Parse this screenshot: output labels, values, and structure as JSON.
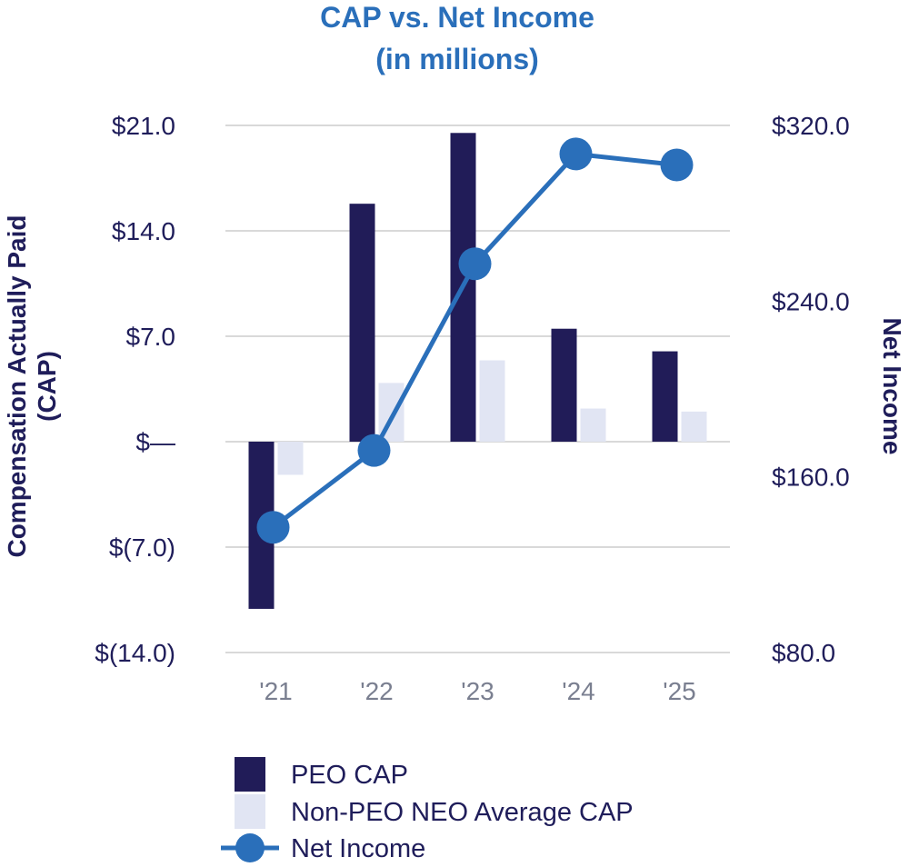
{
  "colors": {
    "peo": "#211c58",
    "non_peo": "#e1e5f3",
    "net_income": "#2a6fba",
    "grid": "#d9d9d9",
    "title": "#2a6fba",
    "text": "#1f1d5a"
  },
  "chart_data": {
    "type": "bar",
    "title_line1": "CAP vs. Net Income",
    "title_line2": "(in millions)",
    "categories": [
      "'21",
      "'22",
      "'23",
      "'24",
      "'25"
    ],
    "ylabel_left_line1": "Compensation Actually Paid",
    "ylabel_left_line2": "(CAP)",
    "ylabel_right": "Net Income",
    "left_axis": {
      "ylim": [
        -14.0,
        21.0
      ],
      "ticks": [
        21.0,
        14.0,
        7.0,
        0.0,
        -7.0,
        -14.0
      ],
      "tick_labels": [
        "$21.0",
        "$14.0",
        "$7.0",
        "$—",
        "$(7.0)",
        "$(14.0)"
      ]
    },
    "right_axis": {
      "ylim": [
        80.0,
        320.0
      ],
      "ticks": [
        320.0,
        240.0,
        160.0,
        80.0
      ],
      "tick_labels": [
        "$320.0",
        "$240.0",
        "$160.0",
        "$80.0"
      ]
    },
    "grid": true,
    "series": [
      {
        "name": "PEO CAP",
        "kind": "bar",
        "axis": "left",
        "values": [
          -11.1,
          15.8,
          20.5,
          7.5,
          6.0
        ]
      },
      {
        "name": "Non-PEO NEO Average CAP",
        "kind": "bar",
        "axis": "left",
        "values": [
          -2.2,
          3.9,
          5.4,
          2.2,
          2.0
        ]
      },
      {
        "name": "Net Income",
        "kind": "line",
        "axis": "right",
        "values": [
          137.0,
          172.0,
          257.0,
          307.0,
          302.0
        ]
      }
    ],
    "legend": {
      "placement": "bottom-left",
      "items": [
        "PEO CAP",
        "Non-PEO NEO Average CAP",
        "Net Income"
      ]
    }
  }
}
